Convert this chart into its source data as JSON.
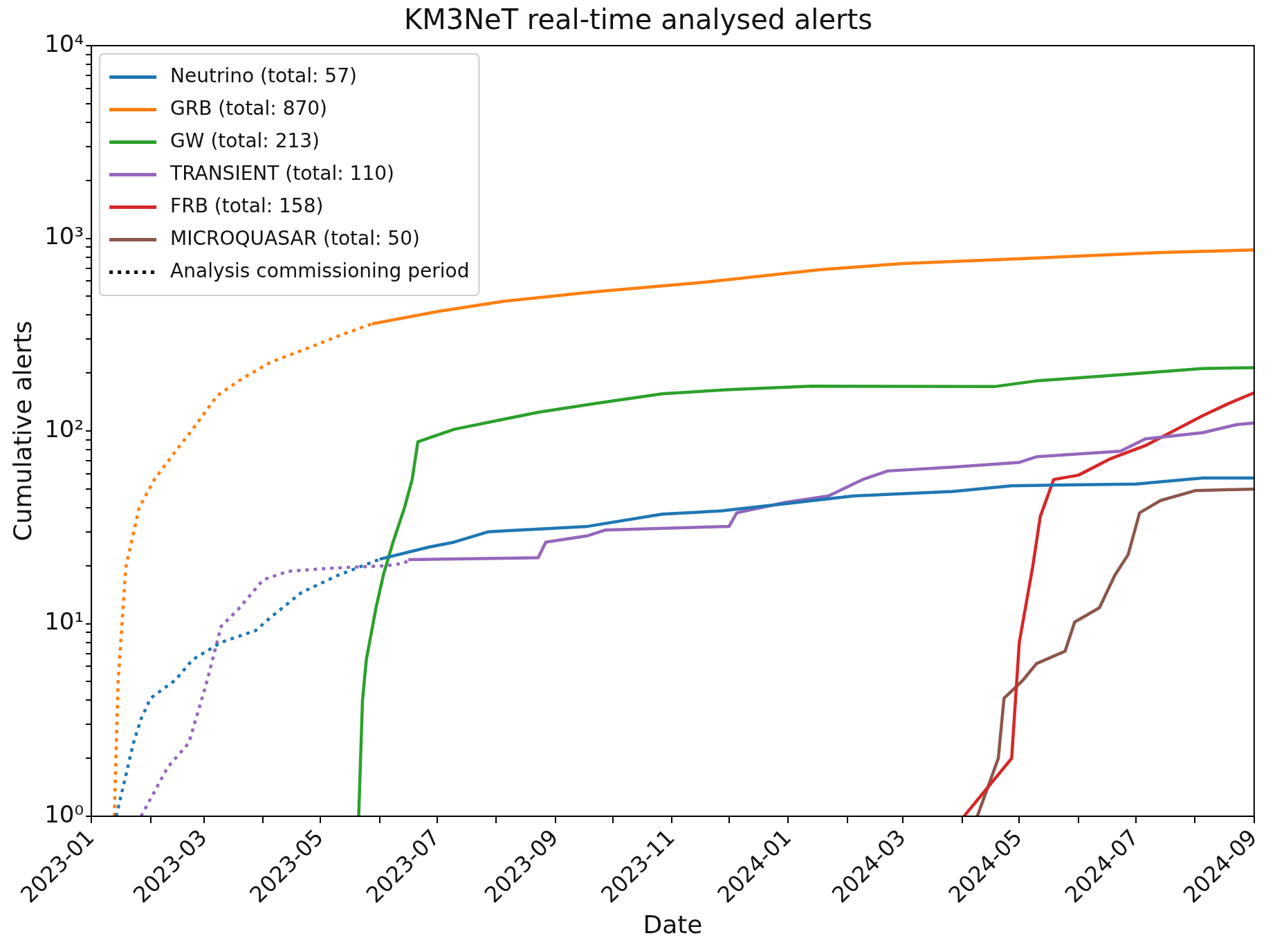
{
  "chart_data": {
    "type": "line",
    "title": "KM3NeT real-time analysed alerts",
    "xlabel": "Date",
    "ylabel": "Cumulative alerts",
    "log": "y",
    "grid": false,
    "legend": "top left",
    "marker": "none",
    "xlim": [
      "2023-01",
      "2024-09"
    ],
    "xticks": [
      "2023-01",
      {
        "value": "2023-02",
        "label": null
      },
      "2023-03",
      {
        "value": "2023-04",
        "label": null
      },
      "2023-05",
      {
        "value": "2023-06",
        "label": null
      },
      "2023-07",
      {
        "value": "2023-08",
        "label": null
      },
      "2023-09",
      {
        "value": "2023-10",
        "label": null
      },
      "2023-11",
      {
        "value": "2023-12",
        "label": null
      },
      "2024-01",
      {
        "value": "2024-02",
        "label": null
      },
      "2024-03",
      {
        "value": "2024-04",
        "label": null
      },
      "2024-05",
      {
        "value": "2024-06",
        "label": null
      },
      "2024-07",
      {
        "value": "2024-08",
        "label": null
      },
      "2024-09"
    ],
    "ylim": [
      1,
      10000
    ],
    "yticks": [
      {
        "value": 1,
        "label": "10⁰"
      },
      {
        "value": 2,
        "label": null
      },
      {
        "value": 3,
        "label": null
      },
      {
        "value": 4,
        "label": null
      },
      {
        "value": 5,
        "label": null
      },
      {
        "value": 6,
        "label": null
      },
      {
        "value": 7,
        "label": null
      },
      {
        "value": 8,
        "label": null
      },
      {
        "value": 9,
        "label": null
      },
      {
        "value": 10,
        "label": "10¹"
      },
      {
        "value": 20,
        "label": null
      },
      {
        "value": 30,
        "label": null
      },
      {
        "value": 40,
        "label": null
      },
      {
        "value": 50,
        "label": null
      },
      {
        "value": 60,
        "label": null
      },
      {
        "value": 70,
        "label": null
      },
      {
        "value": 80,
        "label": null
      },
      {
        "value": 90,
        "label": null
      },
      {
        "value": 100,
        "label": "10²"
      },
      {
        "value": 200,
        "label": null
      },
      {
        "value": 300,
        "label": null
      },
      {
        "value": 400,
        "label": null
      },
      {
        "value": 500,
        "label": null
      },
      {
        "value": 600,
        "label": null
      },
      {
        "value": 700,
        "label": null
      },
      {
        "value": 800,
        "label": null
      },
      {
        "value": 900,
        "label": null
      },
      {
        "value": 1000,
        "label": "10³"
      },
      {
        "value": 2000,
        "label": null
      },
      {
        "value": 3000,
        "label": null
      },
      {
        "value": 4000,
        "label": null
      },
      {
        "value": 5000,
        "label": null
      },
      {
        "value": 6000,
        "label": null
      },
      {
        "value": 7000,
        "label": null
      },
      {
        "value": 8000,
        "label": null
      },
      {
        "value": 9000,
        "label": null
      },
      {
        "value": 10000,
        "label": "10⁴"
      }
    ],
    "series": [
      {
        "name": "Neutrino (total: 57)",
        "color": "#1f77b4",
        "line_style": "solid",
        "x": [
          "2023-06-01",
          "2023-06-27",
          "2023-07-10",
          "2023-07-28",
          "2023-09-18",
          "2023-10-27",
          "2023-11-27",
          "2023-12-31",
          "2024-02-04",
          "2024-03-27",
          "2024-04-27",
          "2024-07-01",
          "2024-08-05",
          "2024-09-01"
        ],
        "values": [
          21.6,
          25,
          26.5,
          30,
          32,
          37,
          38.5,
          42,
          46,
          48.5,
          52,
          53,
          57,
          57
        ]
      },
      {
        "name": "GRB (total: 870)",
        "color": "#ff7f0e",
        "line_style": "solid",
        "x": [
          "2023-05-28",
          "2023-07-02",
          "2023-08-05",
          "2023-09-18",
          "2023-11-18",
          "2024-01-18",
          "2024-03-01",
          "2024-05-10",
          "2024-07-14",
          "2024-09-01"
        ],
        "values": [
          360,
          418,
          471,
          524,
          592,
          688,
          740,
          790,
          845,
          870
        ]
      },
      {
        "name": "GW (total: 213)",
        "color": "#2ca02c",
        "line_style": "solid",
        "x": [
          "2023-05-21",
          "2023-05-23",
          "2023-05-25",
          "2023-05-30",
          "2023-06-03",
          "2023-06-08",
          "2023-06-14",
          "2023-06-18",
          "2023-06-21",
          "2023-07-10",
          "2023-08-01",
          "2023-08-23",
          "2023-09-22",
          "2023-10-27",
          "2023-12-01",
          "2024-01-13",
          "2024-04-18",
          "2024-05-10",
          "2024-06-23",
          "2024-08-05",
          "2024-09-01"
        ],
        "values": [
          1,
          4,
          6.5,
          12,
          18,
          26.5,
          40,
          56,
          88,
          102,
          113,
          125,
          139,
          156,
          164,
          171,
          170,
          182,
          196,
          211,
          213
        ]
      },
      {
        "name": "TRANSIENT (total: 110)",
        "color": "#9467bd",
        "line_style": "solid",
        "x": [
          "2023-06-16",
          "2023-08-23",
          "2023-08-27",
          "2023-09-18",
          "2023-09-27",
          "2023-12-01",
          "2023-12-05",
          "2023-12-31",
          "2024-01-22",
          "2024-02-09",
          "2024-02-22",
          "2024-03-27",
          "2024-05-01",
          "2024-05-10",
          "2024-06-23",
          "2024-07-06",
          "2024-08-05",
          "2024-08-23",
          "2024-09-01"
        ],
        "values": [
          21.5,
          22,
          26.5,
          28.6,
          30.6,
          32,
          37.6,
          42.7,
          46,
          56,
          62,
          65,
          68.7,
          73.5,
          78.5,
          91,
          98,
          108,
          110
        ]
      },
      {
        "name": "FRB (total: 158)",
        "color": "#d62728",
        "line_style": "solid",
        "x": [
          "2024-04-02",
          "2024-04-27",
          "2024-05-01",
          "2024-05-08",
          "2024-05-12",
          "2024-05-19",
          "2024-06-01",
          "2024-06-18",
          "2024-07-06",
          "2024-07-19",
          "2024-08-05",
          "2024-08-18",
          "2024-09-01"
        ],
        "values": [
          1,
          2,
          8,
          19.7,
          36,
          56,
          59,
          72,
          84,
          98,
          120,
          138,
          158
        ]
      },
      {
        "name": "MICROQUASAR (total: 50)",
        "color": "#8c564b",
        "line_style": "solid",
        "x": [
          "2024-04-09",
          "2024-04-20",
          "2024-04-23",
          "2024-05-03",
          "2024-05-10",
          "2024-05-25",
          "2024-05-30",
          "2024-06-12",
          "2024-06-20",
          "2024-06-27",
          "2024-07-03",
          "2024-07-14",
          "2024-08-01",
          "2024-09-01"
        ],
        "values": [
          1,
          2,
          4.1,
          5.1,
          6.2,
          7.2,
          10.2,
          12.1,
          17.8,
          22.8,
          37.6,
          43.6,
          49,
          50
        ]
      },
      {
        "name": "Analysis commissioning period",
        "color": "#000000",
        "line_style": "dotted"
      },
      {
        "color": "#1f77b4",
        "line_style": "dotted",
        "x": [
          "2023-01-14",
          "2023-01-23",
          "2023-01-27",
          "2023-02-01",
          "2023-02-14",
          "2023-02-23",
          "2023-03-10",
          "2023-03-28",
          "2023-04-05",
          "2023-04-21",
          "2023-05-10",
          "2023-06-01"
        ],
        "values": [
          1,
          2.4,
          3.2,
          4.1,
          5.1,
          6.5,
          8,
          9.2,
          10.8,
          14.5,
          17.8,
          21.6
        ]
      },
      {
        "color": "#ff7f0e",
        "line_style": "dotted",
        "x": [
          "2023-01-13",
          "2023-01-15",
          "2023-01-19",
          "2023-01-26",
          "2023-02-03",
          "2023-02-13",
          "2023-02-23",
          "2023-03-08",
          "2023-03-21",
          "2023-04-05",
          "2023-04-23",
          "2023-05-10",
          "2023-05-28"
        ],
        "values": [
          1,
          5,
          19.5,
          40,
          56,
          76,
          102,
          153,
          187,
          228,
          266,
          310,
          360
        ]
      },
      {
        "color": "#9467bd",
        "line_style": "dotted",
        "x": [
          "2023-01-27",
          "2023-02-10",
          "2023-02-21",
          "2023-03-02",
          "2023-03-10",
          "2023-03-19",
          "2023-04-01",
          "2023-04-14",
          "2023-05-06",
          "2023-06-05",
          "2023-06-14",
          "2023-06-16"
        ],
        "values": [
          1,
          1.8,
          2.4,
          4.8,
          9.7,
          11.9,
          16.9,
          18.7,
          19.4,
          20,
          20.6,
          21.5
        ]
      }
    ]
  }
}
